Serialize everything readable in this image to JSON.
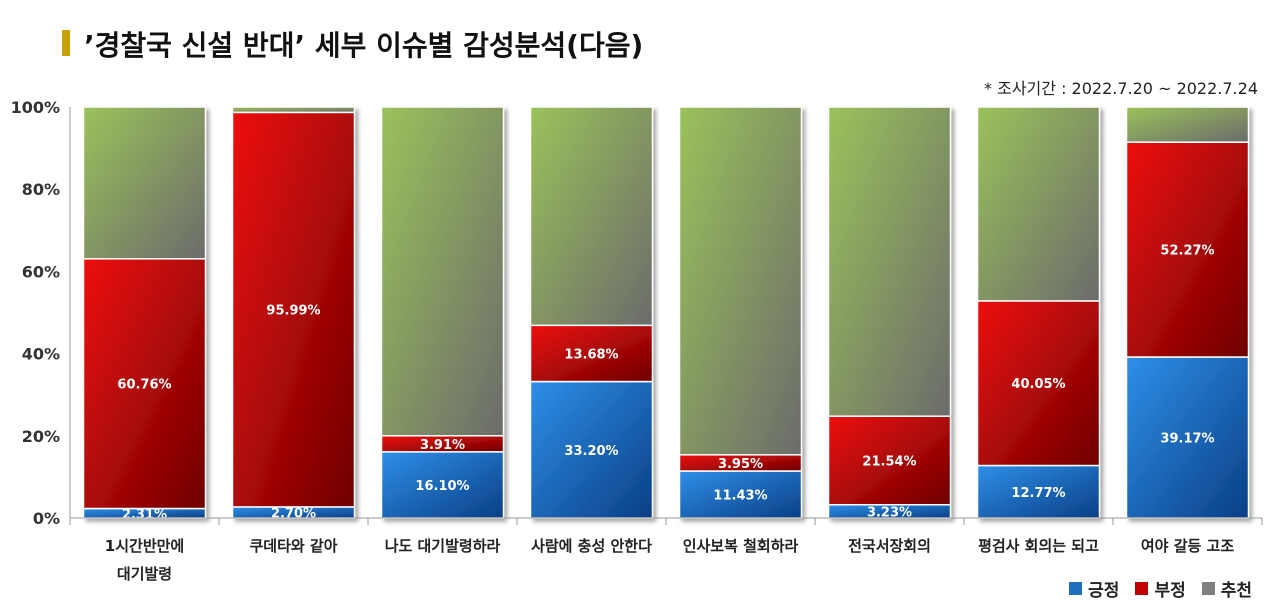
{
  "title": "’경찰국 신설 반대’ 세부 이슈별 감성분석(다음)",
  "period": "* 조사기간 : 2022.7.20 ~ 2022.7.24",
  "colors": {
    "accent": "#c9a200",
    "positive": "#1f6fbf",
    "negative": "#c00000",
    "neutral": "#808080"
  },
  "chart_data": {
    "type": "bar",
    "stacked": true,
    "percent": true,
    "title": "’경찰국 신설 반대’ 세부 이슈별 감성분석(다음)",
    "xlabel": "",
    "ylabel": "",
    "ylim": [
      0,
      100
    ],
    "yticks": [
      "0%",
      "20%",
      "40%",
      "60%",
      "80%",
      "100%"
    ],
    "legend": "bottom-right",
    "categories": [
      "1시간반만에 대기발령",
      "쿠데타와 같아",
      "나도 대기발령하라",
      "사람에 충성 안한다",
      "인사보복 철회하라",
      "전국서장회의",
      "평검사 회의는 되고",
      "여야 갈등 고조"
    ],
    "series": [
      {
        "name": "긍정",
        "values": [
          2.31,
          2.7,
          16.1,
          33.2,
          11.43,
          3.23,
          12.77,
          39.17
        ],
        "labels": [
          "2.31%",
          "2.70%",
          "16.10%",
          "33.20%",
          "11.43%",
          "3.23%",
          "12.77%",
          "39.17%"
        ]
      },
      {
        "name": "부정",
        "values": [
          60.76,
          95.99,
          3.91,
          13.68,
          3.95,
          21.54,
          40.05,
          52.27
        ],
        "labels": [
          "60.76%",
          "95.99%",
          "3.91%",
          "13.68%",
          "3.95%",
          "21.54%",
          "40.05%",
          "52.27%"
        ]
      },
      {
        "name": "추천",
        "values": [
          36.93,
          1.31,
          79.99,
          53.12,
          84.62,
          75.23,
          47.18,
          8.56
        ]
      }
    ]
  }
}
